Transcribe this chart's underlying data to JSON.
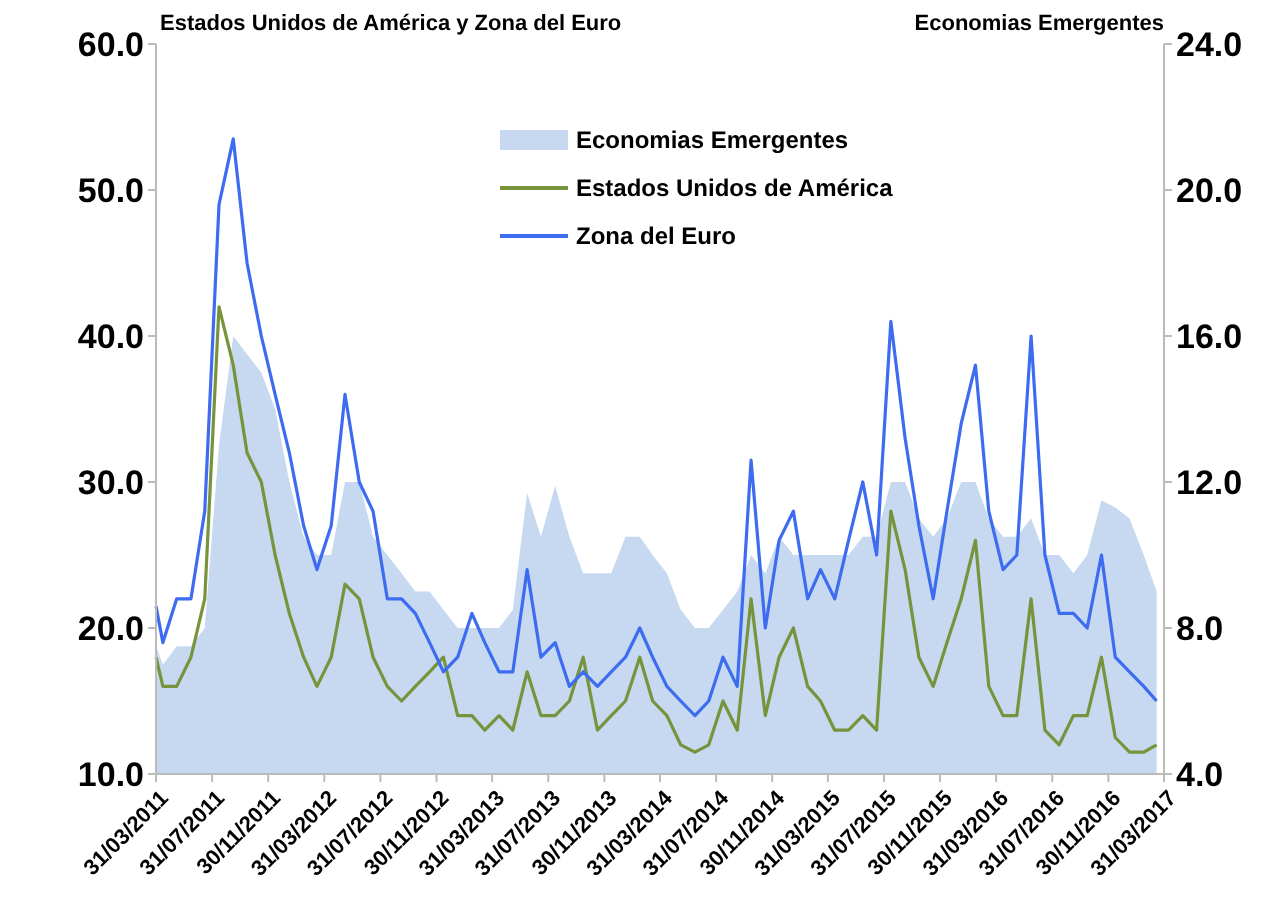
{
  "chart_data": {
    "type": "line",
    "ylabel": "Estados Unidos de América y Zona del Euro",
    "y2label": "Economias Emergentes",
    "x": [
      "2011-03-31",
      "2011-04-15",
      "2011-05-15",
      "2011-06-15",
      "2011-07-15",
      "2011-08-15",
      "2011-09-15",
      "2011-10-15",
      "2011-11-15",
      "2011-12-15",
      "2012-01-15",
      "2012-02-15",
      "2012-03-15",
      "2012-04-15",
      "2012-05-15",
      "2012-06-15",
      "2012-07-15",
      "2012-08-15",
      "2012-09-15",
      "2012-10-15",
      "2012-11-15",
      "2012-12-15",
      "2013-01-15",
      "2013-02-15",
      "2013-03-15",
      "2013-04-15",
      "2013-05-15",
      "2013-06-15",
      "2013-07-15",
      "2013-08-15",
      "2013-09-15",
      "2013-10-15",
      "2013-11-15",
      "2013-12-15",
      "2014-01-15",
      "2014-02-15",
      "2014-03-15",
      "2014-04-15",
      "2014-05-15",
      "2014-06-15",
      "2014-07-15",
      "2014-08-15",
      "2014-09-15",
      "2014-10-15",
      "2014-11-15",
      "2014-12-15",
      "2015-01-15",
      "2015-02-15",
      "2015-03-15",
      "2015-04-15",
      "2015-05-15",
      "2015-06-15",
      "2015-07-15",
      "2015-08-15",
      "2015-09-15",
      "2015-10-15",
      "2015-11-15",
      "2015-12-15",
      "2016-01-15",
      "2016-02-15",
      "2016-03-15",
      "2016-04-15",
      "2016-05-15",
      "2016-06-15",
      "2016-07-15",
      "2016-08-15",
      "2016-09-15",
      "2016-10-15",
      "2016-11-15",
      "2016-12-15",
      "2017-01-15",
      "2017-02-15",
      "2017-03-15"
    ],
    "series": [
      {
        "name": "Economias Emergentes",
        "type": "area",
        "axis": "y2",
        "color": "#c6d9f0",
        "values": [
          7.5,
          7,
          7.5,
          7.5,
          8,
          13,
          16,
          15.5,
          15,
          14,
          12,
          10.5,
          10,
          10,
          12,
          12,
          10.5,
          10,
          9.5,
          9,
          9,
          8.5,
          8,
          8,
          8,
          8,
          8.5,
          11.7,
          10.5,
          11.9,
          10.5,
          9.5,
          9.5,
          9.5,
          10.5,
          10.5,
          10,
          9.5,
          8.5,
          8,
          8,
          8.5,
          9,
          10,
          9.5,
          10.5,
          10,
          10,
          10,
          10,
          10,
          10.5,
          10.5,
          12,
          12,
          11,
          10.5,
          11,
          12,
          12,
          11,
          10.5,
          10.5,
          11,
          10,
          10,
          9.5,
          10,
          11.5,
          11.3,
          11,
          10,
          9
        ]
      },
      {
        "name": "Estados Unidos de América",
        "color": "#77933c",
        "values": [
          18,
          16,
          16,
          18,
          22,
          42,
          38,
          32,
          30,
          25,
          21,
          18,
          16,
          18,
          23,
          22,
          18,
          16,
          15,
          16,
          17,
          18,
          14,
          14,
          13,
          14,
          13,
          17,
          14,
          14,
          15,
          18,
          13,
          14,
          15,
          18,
          15,
          14,
          12,
          11.5,
          12,
          15,
          13,
          22,
          14,
          18,
          20,
          16,
          15,
          13,
          13,
          14,
          13,
          28,
          24,
          18,
          16,
          19,
          22,
          26,
          16,
          14,
          14,
          22,
          13,
          12,
          14,
          14,
          18,
          12.5,
          11.5,
          11.5,
          12
        ]
      },
      {
        "name": "Zona del Euro",
        "color": "#3d6cf0",
        "values": [
          21.5,
          19,
          22,
          22,
          28,
          49,
          53.5,
          45,
          40,
          36,
          32,
          27,
          24,
          27,
          36,
          30,
          28,
          22,
          22,
          21,
          19,
          17,
          18,
          21,
          19,
          17,
          17,
          24,
          18,
          19,
          16,
          17,
          16,
          17,
          18,
          20,
          18,
          16,
          15,
          14,
          15,
          18,
          16,
          31.5,
          20,
          26,
          28,
          22,
          24,
          22,
          26,
          30,
          25,
          41,
          33,
          27,
          22,
          28,
          34,
          38,
          28,
          24,
          25,
          40,
          25,
          21,
          21,
          20,
          25,
          18,
          17,
          16,
          15
        ]
      }
    ],
    "xlim": [
      "2011-03-31",
      "2017-03-31"
    ],
    "xticks": [
      {
        "value": "2011-03-31",
        "label": "31/03/2011"
      },
      {
        "value": "2011-07-31",
        "label": "31/07/2011"
      },
      {
        "value": "2011-11-30",
        "label": "30/11/2011"
      },
      {
        "value": "2012-03-31",
        "label": "31/03/2012"
      },
      {
        "value": "2012-07-31",
        "label": "31/07/2012"
      },
      {
        "value": "2012-11-30",
        "label": "30/11/2012"
      },
      {
        "value": "2013-03-31",
        "label": "31/03/2013"
      },
      {
        "value": "2013-07-31",
        "label": "31/07/2013"
      },
      {
        "value": "2013-11-30",
        "label": "30/11/2013"
      },
      {
        "value": "2014-03-31",
        "label": "31/03/2014"
      },
      {
        "value": "2014-07-31",
        "label": "31/07/2014"
      },
      {
        "value": "2014-11-30",
        "label": "30/11/2014"
      },
      {
        "value": "2015-03-31",
        "label": "31/03/2015"
      },
      {
        "value": "2015-07-31",
        "label": "31/07/2015"
      },
      {
        "value": "2015-11-30",
        "label": "30/11/2015"
      },
      {
        "value": "2016-03-31",
        "label": "31/03/2016"
      },
      {
        "value": "2016-07-31",
        "label": "31/07/2016"
      },
      {
        "value": "2016-11-30",
        "label": "30/11/2016"
      },
      {
        "value": "2017-03-31",
        "label": "31/03/2017"
      }
    ],
    "ylim": [
      10,
      60
    ],
    "yticks": [
      {
        "value": 10,
        "label": "10.0"
      },
      {
        "value": 20,
        "label": "20.0"
      },
      {
        "value": 30,
        "label": "30.0"
      },
      {
        "value": 40,
        "label": "40.0"
      },
      {
        "value": 50,
        "label": "50.0"
      },
      {
        "value": 60,
        "label": "60.0"
      }
    ],
    "y2lim": [
      4,
      24
    ],
    "y2ticks": [
      {
        "value": 4,
        "label": "4.0"
      },
      {
        "value": 8,
        "label": "8.0"
      },
      {
        "value": 12,
        "label": "12.0"
      },
      {
        "value": 16,
        "label": "16.0"
      },
      {
        "value": 20,
        "label": "20.0"
      },
      {
        "value": 24,
        "label": "24.0"
      }
    ],
    "grid": false,
    "legend": "top",
    "marker": "none",
    "line_style": "solid"
  }
}
